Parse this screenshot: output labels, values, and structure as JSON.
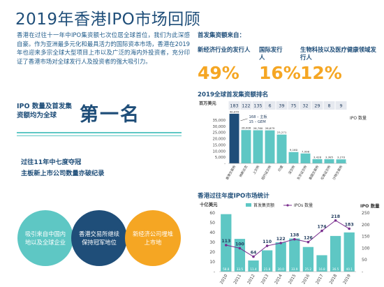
{
  "title": "2019年香港IPO市场回顾",
  "intro": "香港在过往十一年中IPO集资额七次位居全球首位，我们为此深感自豪。作为亚洲最多元化和最具活力的国际资本市场，香港在2019年也迎来多宗全球大型项目上市以及广泛的海内外投资者，充分印证了香港市场对全球发行人及投资者的强大吸引力。",
  "rank": {
    "sub": "IPO 数量及首发集资额均为全球",
    "big": "第一名"
  },
  "keep": {
    "line1": "过往11年中七度夺冠",
    "line2": "主板新上市公司数量亦破纪录"
  },
  "bubbles": [
    {
      "text": "吸引来自中国内地以及全球企业",
      "color": "#5ec7c4"
    },
    {
      "text": "香港交易所继续保持冠军地位",
      "color": "#1f4e79"
    },
    {
      "text": "新经济公司埋堆上市地",
      "color": "#f5a623"
    }
  ],
  "fund": {
    "heading": "首发集资额来自：",
    "items": [
      {
        "label": "新经济行业的发行人",
        "pct": "49%"
      },
      {
        "label": "国际发行人",
        "pct": "16%"
      },
      {
        "label": "生物科技以及医疗健康领域发行人",
        "pct": "12%"
      }
    ]
  },
  "colors": {
    "navy": "#1f4e79",
    "teal": "#5ec7c4",
    "orange": "#f5a623",
    "purple": "#7a2e8e"
  },
  "chart_data": [
    {
      "type": "bar",
      "title": "2019全球首发集资额排名",
      "ylabel": "百万美元",
      "count_label": "IPO 数量",
      "ylim": [
        0,
        40000
      ],
      "yticks": [
        "-",
        "5,000",
        "10,000",
        "15,000",
        "20,000",
        "25,000",
        "30,000",
        "35,000"
      ],
      "categories": [
        "香港交易所",
        "纳斯达克",
        "上交所",
        "纽约证交所",
        "印度",
        "深交所",
        "东京证交所",
        "泰国交易所",
        "伦敦证交所",
        "沙特交易所"
      ],
      "values": [
        40055,
        26908,
        26760,
        26679,
        23271,
        9160,
        7998,
        3428,
        3385,
        3270
      ],
      "value_labels": [
        "40,055",
        "26,908",
        "26,760",
        "26,679",
        "23,271",
        "9,160",
        "7,998",
        "3,428",
        "3,385",
        "3,270"
      ],
      "counts": [
        "183",
        "122",
        "135",
        "6",
        "39",
        "75",
        "32",
        "29",
        "8",
        "9"
      ],
      "annotation": [
        "168 – 主板",
        "15 – GEM"
      ]
    },
    {
      "type": "bar",
      "title": "香港过往年度IPO市场统计",
      "ylabel": "十亿美元",
      "y2label": "IPO 数量",
      "ylim": [
        0,
        60
      ],
      "y2lim": [
        0,
        250
      ],
      "yticks": [
        "-",
        "10",
        "20",
        "30",
        "40",
        "50",
        "60"
      ],
      "y2ticks": [
        "-",
        "50",
        "100",
        "150",
        "200",
        "250"
      ],
      "categories": [
        "2010",
        "2011",
        "2012",
        "2013",
        "2014",
        "2015",
        "2016",
        "2017",
        "2018",
        "2019"
      ],
      "series": [
        {
          "name": "首发集资额",
          "values": [
            58.8,
            33.5,
            11.4,
            21.8,
            30.0,
            33.9,
            25.2,
            16.8,
            36.5,
            40.1
          ],
          "labels": [
            "58.8",
            "33.5",
            "11.4",
            "21.8",
            "30.0",
            "33.9",
            "25.2",
            "16.8",
            "36.5",
            "40.1"
          ]
        },
        {
          "name": "IPOs 数量",
          "values": [
            113,
            100,
            64,
            110,
            122,
            138,
            126,
            174,
            218,
            183
          ],
          "labels": [
            "113",
            "100",
            "64",
            "110",
            "122",
            "138",
            "126",
            "174",
            "218",
            "183"
          ]
        }
      ]
    }
  ]
}
